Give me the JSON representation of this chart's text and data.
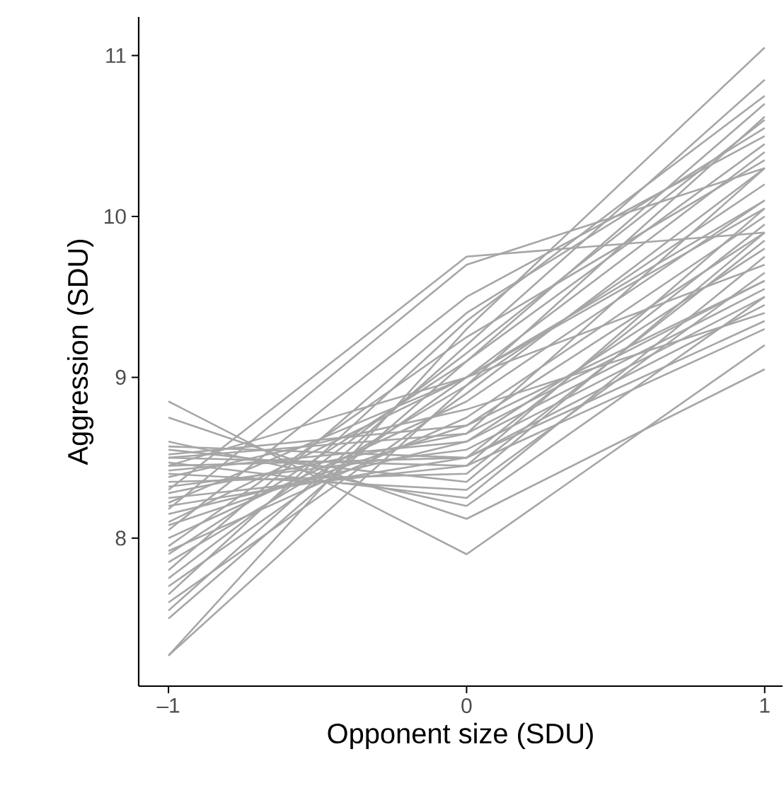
{
  "chart_data": {
    "type": "line",
    "xlabel": "Opponent size (SDU)",
    "ylabel": "Aggression (SDU)",
    "x": [
      -1,
      0,
      1
    ],
    "xlim": [
      -1.1,
      1.06
    ],
    "ylim": [
      7.08,
      11.24
    ],
    "xticks": [
      {
        "value": -1,
        "label": "–1"
      },
      0,
      1
    ],
    "yticks": [
      8,
      9,
      10,
      11
    ],
    "grid": false,
    "legend": false,
    "marker": "none",
    "line_style": "solid",
    "series": [
      {
        "color": "#a6a6a6",
        "values": [
          7.27,
          8.95,
          10.62
        ]
      },
      {
        "color": "#a6a6a6",
        "values": [
          7.27,
          9.3,
          11.05
        ]
      },
      {
        "color": "#a6a6a6",
        "values": [
          7.5,
          9.1,
          10.7
        ]
      },
      {
        "color": "#a6a6a6",
        "values": [
          7.55,
          9.2,
          10.85
        ]
      },
      {
        "color": "#a6a6a6",
        "values": [
          7.6,
          8.9,
          10.3
        ]
      },
      {
        "color": "#a6a6a6",
        "values": [
          7.65,
          9.35,
          10.75
        ]
      },
      {
        "color": "#a6a6a6",
        "values": [
          7.7,
          9.0,
          10.4
        ]
      },
      {
        "color": "#a6a6a6",
        "values": [
          7.75,
          9.15,
          10.6
        ]
      },
      {
        "color": "#a6a6a6",
        "values": [
          7.8,
          9.4,
          10.55
        ]
      },
      {
        "color": "#a6a6a6",
        "values": [
          7.85,
          8.95,
          10.2
        ]
      },
      {
        "color": "#a6a6a6",
        "values": [
          7.9,
          9.1,
          10.45
        ]
      },
      {
        "color": "#a6a6a6",
        "values": [
          7.92,
          8.75,
          10.0
        ]
      },
      {
        "color": "#a6a6a6",
        "values": [
          7.95,
          9.25,
          10.35
        ]
      },
      {
        "color": "#a6a6a6",
        "values": [
          8.0,
          8.85,
          10.1
        ]
      },
      {
        "color": "#a6a6a6",
        "values": [
          8.05,
          9.5,
          10.5
        ]
      },
      {
        "color": "#a6a6a6",
        "values": [
          8.08,
          8.7,
          9.9
        ]
      },
      {
        "color": "#a6a6a6",
        "values": [
          8.1,
          9.0,
          10.05
        ]
      },
      {
        "color": "#a6a6a6",
        "values": [
          8.15,
          8.6,
          9.8
        ]
      },
      {
        "color": "#a6a6a6",
        "values": [
          8.18,
          9.7,
          10.3
        ]
      },
      {
        "color": "#a6a6a6",
        "values": [
          8.2,
          8.5,
          9.95
        ]
      },
      {
        "color": "#a6a6a6",
        "values": [
          8.22,
          9.0,
          9.7
        ]
      },
      {
        "color": "#a6a6a6",
        "values": [
          8.25,
          8.45,
          10.05
        ]
      },
      {
        "color": "#a6a6a6",
        "values": [
          8.28,
          8.65,
          9.6
        ]
      },
      {
        "color": "#a6a6a6",
        "values": [
          8.3,
          9.75,
          9.9
        ]
      },
      {
        "color": "#a6a6a6",
        "values": [
          8.32,
          8.55,
          9.5
        ]
      },
      {
        "color": "#a6a6a6",
        "values": [
          8.35,
          8.4,
          9.85
        ]
      },
      {
        "color": "#a6a6a6",
        "values": [
          8.38,
          8.8,
          9.4
        ]
      },
      {
        "color": "#a6a6a6",
        "values": [
          8.4,
          8.3,
          9.65
        ]
      },
      {
        "color": "#a6a6a6",
        "values": [
          8.42,
          8.6,
          9.55
        ]
      },
      {
        "color": "#a6a6a6",
        "values": [
          8.45,
          8.5,
          9.45
        ]
      },
      {
        "color": "#a6a6a6",
        "values": [
          8.47,
          8.25,
          9.75
        ]
      },
      {
        "color": "#a6a6a6",
        "values": [
          8.5,
          8.45,
          9.3
        ]
      },
      {
        "color": "#a6a6a6",
        "values": [
          8.52,
          8.7,
          9.6
        ]
      },
      {
        "color": "#a6a6a6",
        "values": [
          8.55,
          8.35,
          9.9
        ]
      },
      {
        "color": "#a6a6a6",
        "values": [
          8.57,
          8.5,
          9.35
        ]
      },
      {
        "color": "#a6a6a6",
        "values": [
          8.6,
          8.2,
          9.5
        ]
      },
      {
        "color": "#a6a6a6",
        "values": [
          8.75,
          8.12,
          9.05
        ]
      },
      {
        "color": "#a6a6a6",
        "values": [
          8.85,
          7.9,
          9.2
        ]
      },
      {
        "color": "#a6a6a6",
        "values": [
          8.5,
          8.65,
          10.3
        ]
      },
      {
        "color": "#a6a6a6",
        "values": [
          8.45,
          9.0,
          10.1
        ]
      }
    ]
  }
}
